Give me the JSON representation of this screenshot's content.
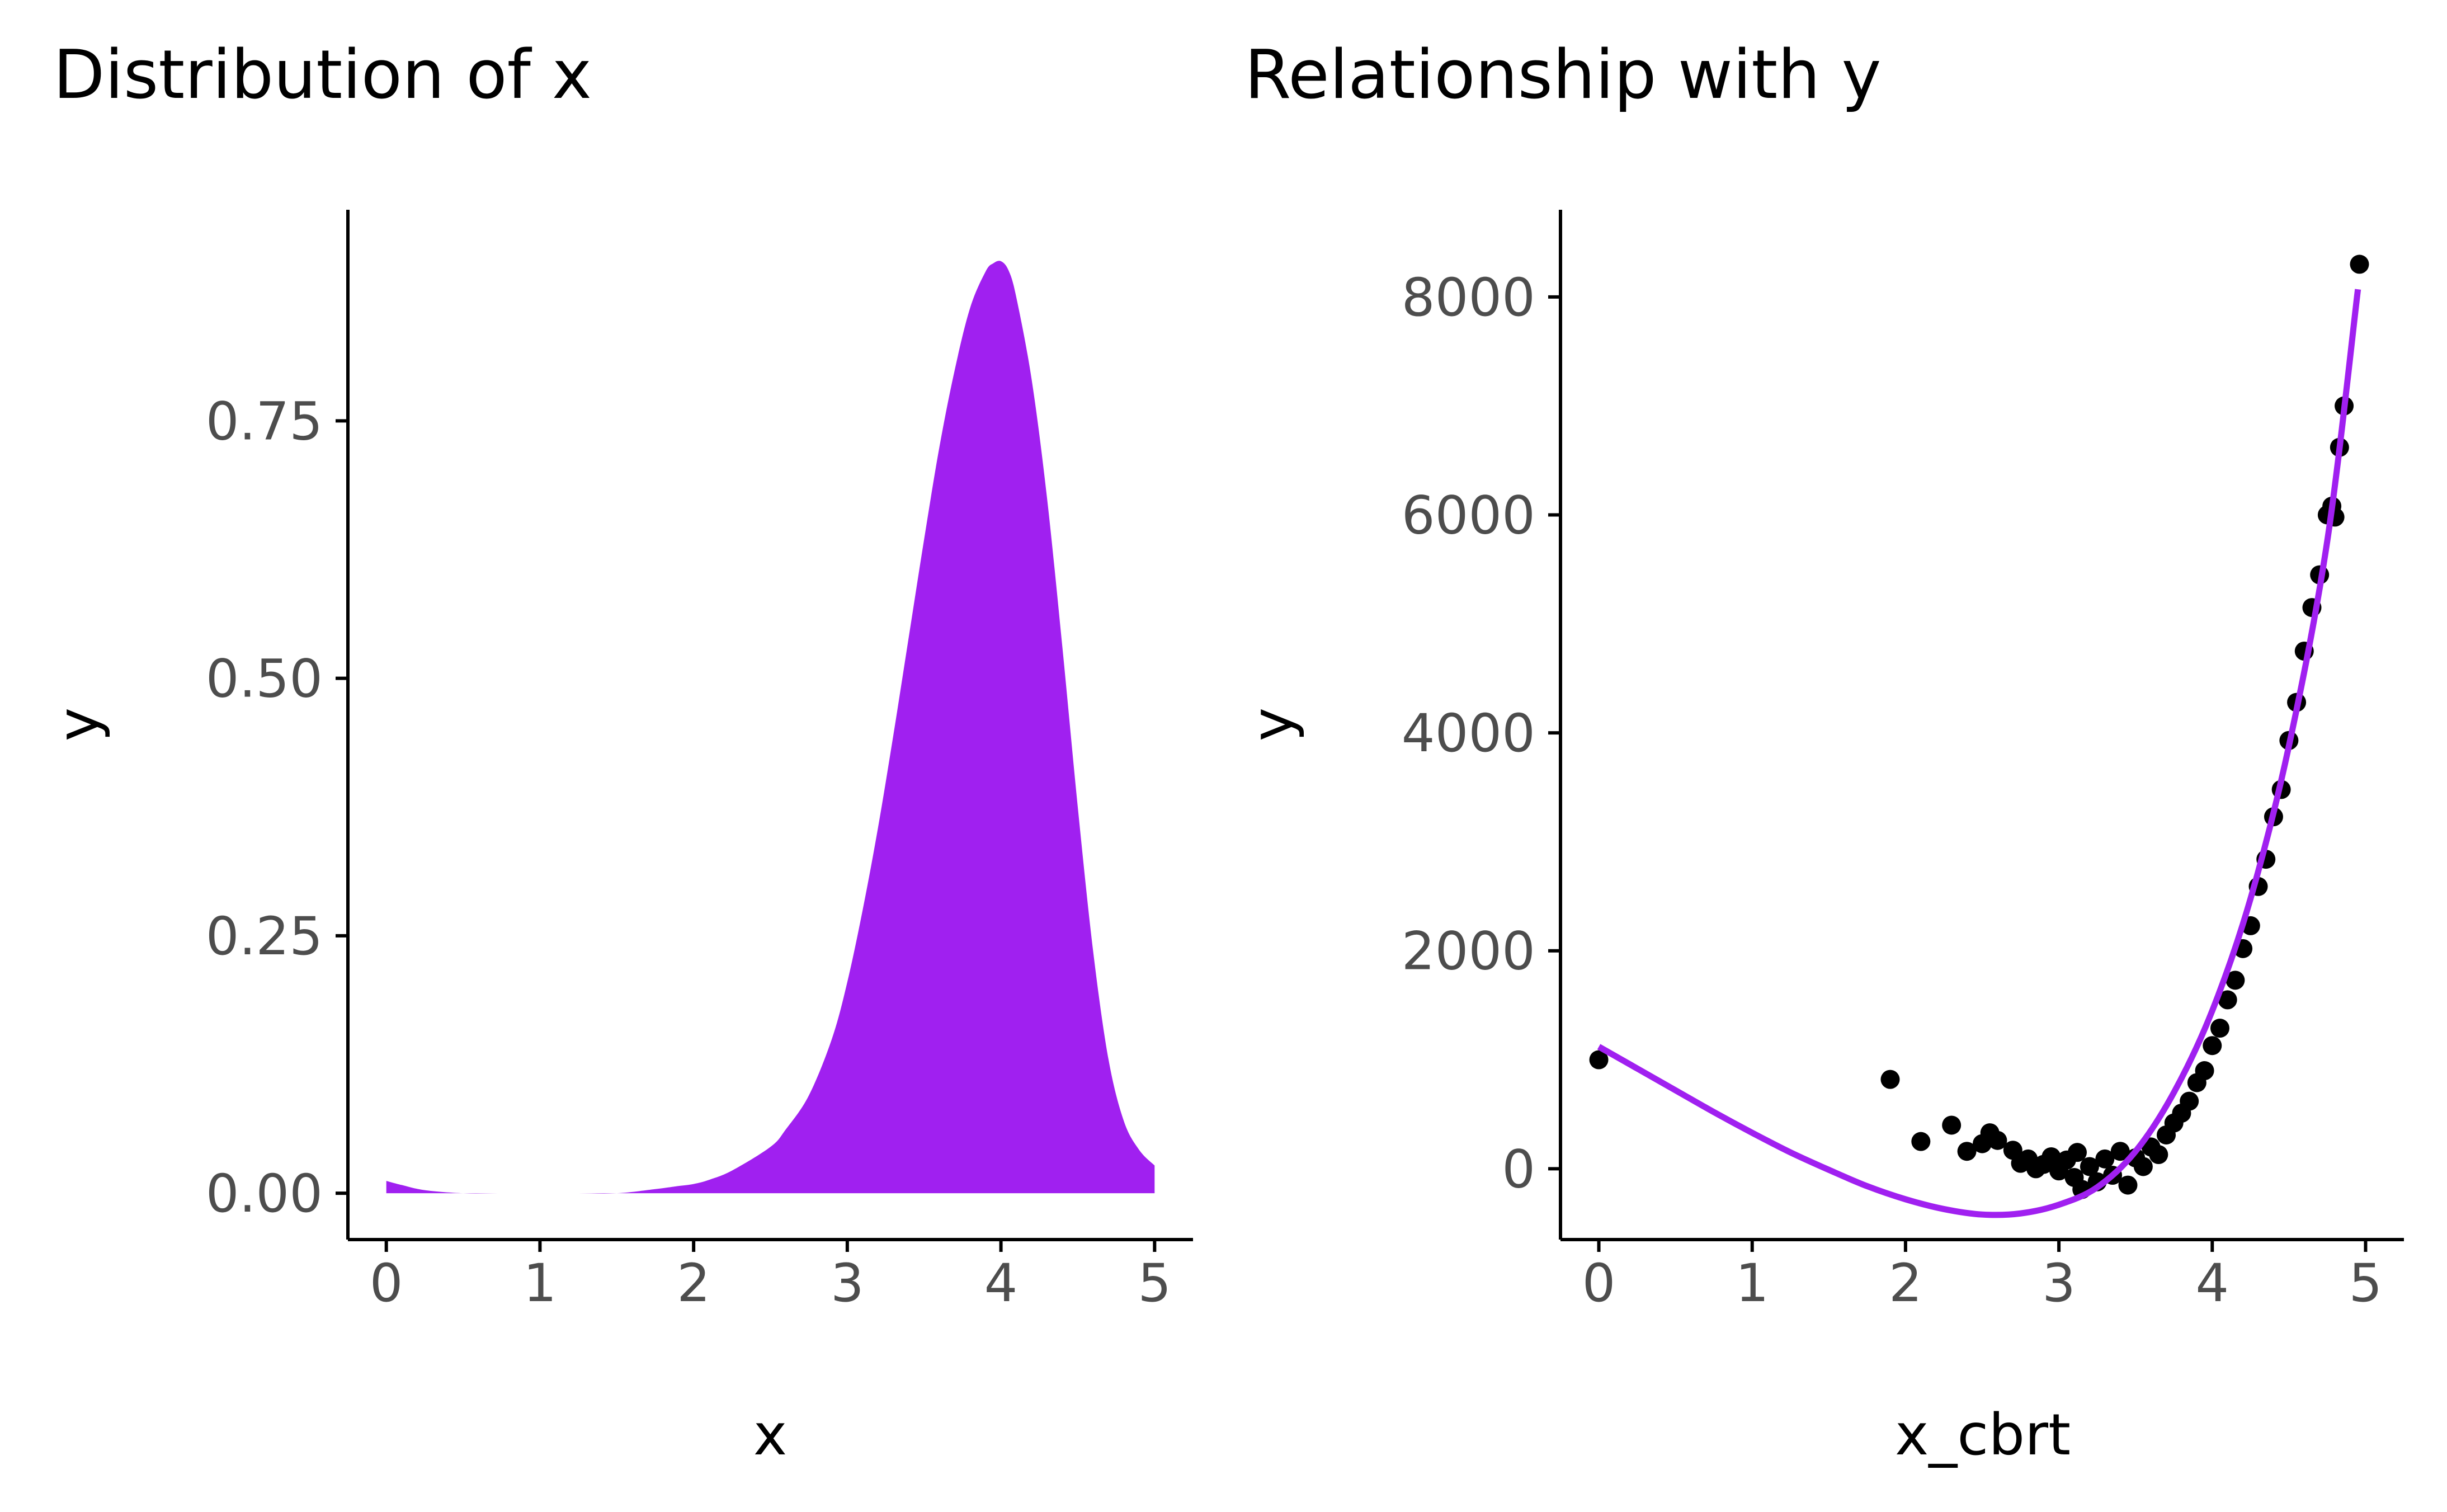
{
  "chart_data": [
    {
      "type": "area",
      "title": "Distribution of x",
      "xlabel": "x",
      "ylabel": "y",
      "xlim": [
        -0.25,
        5.25
      ],
      "ylim": [
        -0.045,
        0.955
      ],
      "x_ticks": [
        "0",
        "1",
        "2",
        "3",
        "4",
        "5"
      ],
      "y_ticks": [
        "0.00",
        "0.25",
        "0.50",
        "0.75"
      ],
      "grid": false,
      "series": [
        {
          "color": "#a020f0",
          "x": [
            0,
            0.1,
            0.25,
            0.5,
            0.75,
            1.0,
            1.25,
            1.5,
            1.75,
            1.9,
            2.0,
            2.1,
            2.25,
            2.5,
            2.6,
            2.75,
            2.9,
            3.0,
            3.1,
            3.2,
            3.3,
            3.4,
            3.5,
            3.6,
            3.7,
            3.8,
            3.9,
            3.95,
            4.0,
            4.05,
            4.1,
            4.2,
            4.3,
            4.4,
            4.5,
            4.6,
            4.7,
            4.8,
            4.9,
            5.0
          ],
          "y": [
            0.012,
            0.008,
            0.003,
            0.0,
            0.0,
            0.0,
            0.0,
            0.0,
            0.004,
            0.007,
            0.009,
            0.013,
            0.022,
            0.045,
            0.062,
            0.095,
            0.15,
            0.205,
            0.275,
            0.355,
            0.445,
            0.54,
            0.635,
            0.725,
            0.8,
            0.86,
            0.895,
            0.903,
            0.905,
            0.896,
            0.87,
            0.79,
            0.675,
            0.53,
            0.375,
            0.235,
            0.13,
            0.07,
            0.042,
            0.027
          ]
        }
      ]
    },
    {
      "type": "scatter",
      "title": "Relationship with y",
      "xlabel": "x_cbrt",
      "ylabel": "y",
      "xlim": [
        -0.25,
        5.25
      ],
      "ylim": [
        -650,
        8800
      ],
      "x_ticks": [
        "0",
        "1",
        "2",
        "3",
        "4",
        "5"
      ],
      "y_ticks": [
        "0",
        "2000",
        "4000",
        "6000",
        "8000"
      ],
      "grid": false,
      "point_color": "#000000",
      "line_color": "#a020f0",
      "points": [
        [
          0.0,
          1000
        ],
        [
          1.9,
          820
        ],
        [
          2.1,
          250
        ],
        [
          2.3,
          400
        ],
        [
          2.4,
          160
        ],
        [
          2.5,
          230
        ],
        [
          2.55,
          330
        ],
        [
          2.6,
          260
        ],
        [
          2.7,
          170
        ],
        [
          2.75,
          50
        ],
        [
          2.8,
          90
        ],
        [
          2.85,
          0
        ],
        [
          2.9,
          40
        ],
        [
          2.95,
          110
        ],
        [
          3.0,
          -20
        ],
        [
          3.05,
          80
        ],
        [
          3.1,
          -80
        ],
        [
          3.12,
          150
        ],
        [
          3.15,
          -190
        ],
        [
          3.2,
          20
        ],
        [
          3.25,
          -120
        ],
        [
          3.3,
          90
        ],
        [
          3.35,
          -60
        ],
        [
          3.4,
          160
        ],
        [
          3.45,
          -150
        ],
        [
          3.5,
          100
        ],
        [
          3.55,
          20
        ],
        [
          3.6,
          200
        ],
        [
          3.65,
          130
        ],
        [
          3.7,
          310
        ],
        [
          3.75,
          420
        ],
        [
          3.8,
          510
        ],
        [
          3.85,
          620
        ],
        [
          3.9,
          790
        ],
        [
          3.95,
          900
        ],
        [
          4.0,
          1130
        ],
        [
          4.05,
          1290
        ],
        [
          4.1,
          1550
        ],
        [
          4.15,
          1730
        ],
        [
          4.2,
          2020
        ],
        [
          4.25,
          2230
        ],
        [
          4.3,
          2590
        ],
        [
          4.35,
          2840
        ],
        [
          4.4,
          3230
        ],
        [
          4.45,
          3480
        ],
        [
          4.5,
          3930
        ],
        [
          4.55,
          4280
        ],
        [
          4.6,
          4750
        ],
        [
          4.65,
          5150
        ],
        [
          4.7,
          5450
        ],
        [
          4.75,
          6000
        ],
        [
          4.78,
          6080
        ],
        [
          4.8,
          5980
        ],
        [
          4.83,
          6620
        ],
        [
          4.86,
          7000
        ],
        [
          4.96,
          8300
        ]
      ],
      "fit": {
        "x": [
          0,
          0.25,
          0.5,
          0.75,
          1.0,
          1.25,
          1.5,
          1.75,
          2.0,
          2.25,
          2.5,
          2.75,
          3.0,
          3.25,
          3.5,
          3.75,
          4.0,
          4.25,
          4.5,
          4.75,
          4.95
        ],
        "y": [
          1120,
          920,
          720,
          520,
          330,
          150,
          -10,
          -160,
          -280,
          -370,
          -420,
          -410,
          -330,
          -170,
          160,
          700,
          1450,
          2480,
          3880,
          5760,
          8070
        ]
      }
    }
  ]
}
